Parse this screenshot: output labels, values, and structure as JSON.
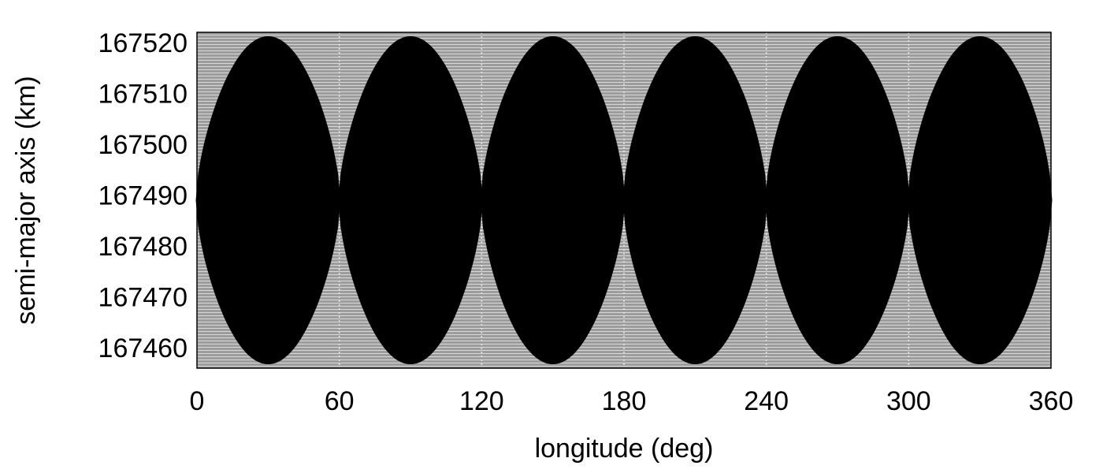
{
  "chart_data": {
    "type": "scatter",
    "title": "",
    "xlabel": "longitude (deg)",
    "ylabel": "semi-major axis (km)",
    "xlim": [
      0,
      360
    ],
    "ylim": [
      167456,
      167522
    ],
    "x_ticks": [
      "0",
      "60",
      "120",
      "180",
      "240",
      "300",
      "360"
    ],
    "y_ticks": [
      "167460",
      "167470",
      "167480",
      "167490",
      "167500",
      "167510",
      "167520"
    ],
    "background_color": "#a6a6a6",
    "point_color": "#000000",
    "grid": false,
    "legend": "none",
    "islands": [
      {
        "center_longitude": 30,
        "longitude_range": [
          0,
          60
        ],
        "semi_major_axis_range": [
          167457,
          167521
        ]
      },
      {
        "center_longitude": 90,
        "longitude_range": [
          60,
          120
        ],
        "semi_major_axis_range": [
          167457,
          167521
        ]
      },
      {
        "center_longitude": 150,
        "longitude_range": [
          120,
          180
        ],
        "semi_major_axis_range": [
          167457,
          167521
        ]
      },
      {
        "center_longitude": 210,
        "longitude_range": [
          180,
          240
        ],
        "semi_major_axis_range": [
          167457,
          167521
        ]
      },
      {
        "center_longitude": 270,
        "longitude_range": [
          240,
          300
        ],
        "semi_major_axis_range": [
          167457,
          167521
        ]
      },
      {
        "center_longitude": 330,
        "longitude_range": [
          300,
          360
        ],
        "semi_major_axis_range": [
          167457,
          167521
        ]
      }
    ],
    "separatrix_value": 167489
  }
}
